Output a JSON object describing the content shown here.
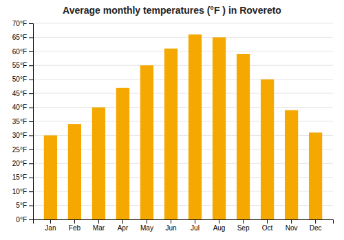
{
  "chart_data": {
    "type": "bar",
    "title": "Average monthly temperatures (°F ) in Rovereto",
    "categories": [
      "Jan",
      "Feb",
      "Mar",
      "Apr",
      "May",
      "Jun",
      "Jul",
      "Aug",
      "Sep",
      "Oct",
      "Nov",
      "Dec"
    ],
    "values": [
      30,
      34,
      40,
      47,
      55,
      61,
      66,
      65,
      59,
      50,
      39,
      31
    ],
    "color": "#F5A800",
    "ylim": [
      0,
      70
    ],
    "yticks": [
      {
        "value": 0,
        "label": "0°F"
      },
      {
        "value": 5,
        "label": "5°F"
      },
      {
        "value": 10,
        "label": "10°F"
      },
      {
        "value": 15,
        "label": "15°F"
      },
      {
        "value": 20,
        "label": "20°F"
      },
      {
        "value": 25,
        "label": "25°F"
      },
      {
        "value": 30,
        "label": "30°F"
      },
      {
        "value": 35,
        "label": "35°F"
      },
      {
        "value": 40,
        "label": "40°F"
      },
      {
        "value": 45,
        "label": "45°F"
      },
      {
        "value": 50,
        "label": "50°F"
      },
      {
        "value": 55,
        "label": "55°F"
      },
      {
        "value": 60,
        "label": "60°F"
      },
      {
        "value": 65,
        "label": "65°F"
      },
      {
        "value": 70,
        "label": "70°F"
      }
    ],
    "grid": true
  }
}
